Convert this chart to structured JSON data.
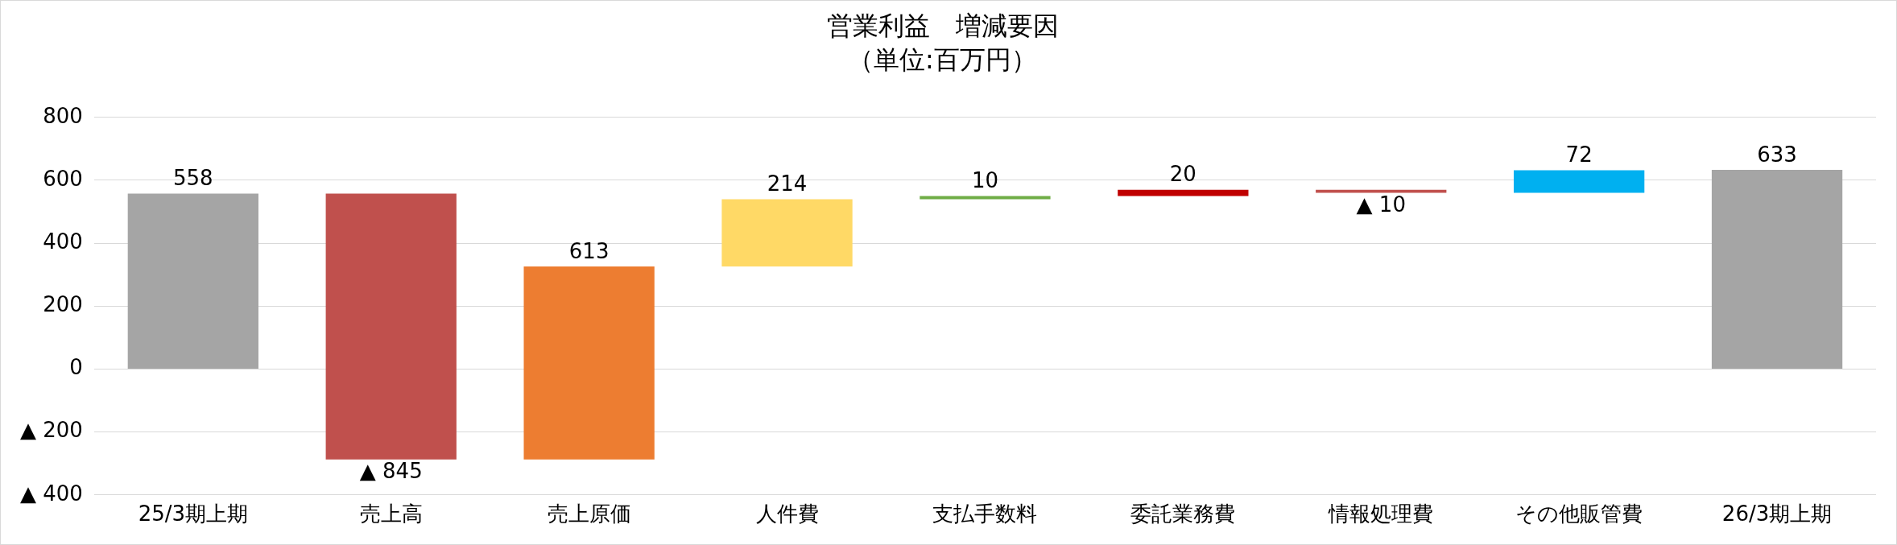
{
  "chart_data": {
    "type": "bar",
    "title": "営業利益　増減要因",
    "subtitle": "（単位:百万円）",
    "categories": [
      "25/3期上期",
      "売上高",
      "売上原価",
      "人件費",
      "支払手数料",
      "委託業務費",
      "情報処理費",
      "その他販管費",
      "26/3期上期"
    ],
    "values": [
      558,
      -845,
      613,
      214,
      10,
      20,
      -10,
      72,
      633
    ],
    "base": [
      0,
      558,
      -287,
      326,
      540,
      550,
      570,
      560,
      0
    ],
    "colors": [
      "#a5a5a5",
      "#c0504d",
      "#ed7d31",
      "#ffd966",
      "#70ad47",
      "#c00000",
      "#c0504d",
      "#00b0f0",
      "#a5a5a5"
    ],
    "value_labels": [
      "558",
      "▲ 845",
      "613",
      "214",
      "10",
      "20",
      "▲ 10",
      "72",
      "633"
    ],
    "ylim": [
      -400,
      800
    ],
    "yticks": [
      {
        "value": -400,
        "label": "▲ 400"
      },
      {
        "value": -200,
        "label": "▲ 200"
      },
      0,
      200,
      400,
      600,
      800
    ],
    "grid": "y",
    "legend": false
  }
}
